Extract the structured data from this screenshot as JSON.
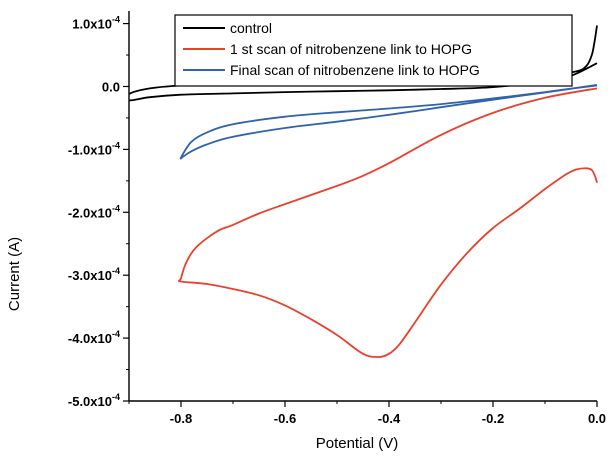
{
  "chart_data": {
    "type": "line",
    "title": "",
    "xlabel": "Potential (V)",
    "ylabel": "Current (A)",
    "xlim": [
      -0.9,
      0.0
    ],
    "ylim": [
      -0.0005,
      0.00012
    ],
    "x_ticks": [
      {
        "value": -0.8,
        "label": "-0.8"
      },
      {
        "value": -0.6,
        "label": "-0.6"
      },
      {
        "value": -0.4,
        "label": "-0.4"
      },
      {
        "value": -0.2,
        "label": "-0.2"
      },
      {
        "value": 0.0,
        "label": "0.0"
      }
    ],
    "y_ticks": [
      {
        "value": 0.0001,
        "mantissa": "1.0x10",
        "exp": "-4"
      },
      {
        "value": 0.0,
        "mantissa": "0.0",
        "exp": ""
      },
      {
        "value": -0.0001,
        "mantissa": "-1.0x10",
        "exp": "-4"
      },
      {
        "value": -0.0002,
        "mantissa": "-2.0x10",
        "exp": "-4"
      },
      {
        "value": -0.0003,
        "mantissa": "-3.0x10",
        "exp": "-4"
      },
      {
        "value": -0.0004,
        "mantissa": "-4.0x10",
        "exp": "-4"
      },
      {
        "value": -0.0005,
        "mantissa": "-5.0x10",
        "exp": "-4"
      }
    ],
    "grid": false,
    "legend_position": "top-right",
    "series": [
      {
        "name": "control",
        "color": "#000000",
        "points": [
          [
            0.0,
            9.7e-05
          ],
          [
            -0.005,
            7e-05
          ],
          [
            -0.01,
            5e-05
          ],
          [
            -0.02,
            3.3e-05
          ],
          [
            -0.04,
            2.4e-05
          ],
          [
            -0.1,
            1.8e-05
          ],
          [
            -0.2,
            1.4e-05
          ],
          [
            -0.3,
            1.1e-05
          ],
          [
            -0.4,
            9e-06
          ],
          [
            -0.5,
            7.5e-06
          ],
          [
            -0.6,
            6e-06
          ],
          [
            -0.7,
            4e-06
          ],
          [
            -0.8,
            1.5e-06
          ],
          [
            -0.86,
            -3e-06
          ],
          [
            -0.9,
            -1.2e-05
          ],
          [
            -0.9,
            -2.2e-05
          ],
          [
            -0.86,
            -1.7e-05
          ],
          [
            -0.8,
            -1.3e-05
          ],
          [
            -0.7,
            -1.1e-05
          ],
          [
            -0.6,
            -9e-06
          ],
          [
            -0.5,
            -7.5e-06
          ],
          [
            -0.4,
            -6e-06
          ],
          [
            -0.3,
            -4e-06
          ],
          [
            -0.2,
            -1e-06
          ],
          [
            -0.1,
            8e-06
          ],
          [
            -0.05,
            1.7e-05
          ],
          [
            0.0,
            3.7e-05
          ]
        ]
      },
      {
        "name": "1 st scan of nitrobenzene link to HOPG",
        "color": "#e8412c",
        "points": [
          [
            0.0,
            -0.000153
          ],
          [
            -0.004,
            -0.000142
          ],
          [
            -0.01,
            -0.000133
          ],
          [
            -0.02,
            -0.00013
          ],
          [
            -0.04,
            -0.000132
          ],
          [
            -0.06,
            -0.00014
          ],
          [
            -0.1,
            -0.000163
          ],
          [
            -0.15,
            -0.000195
          ],
          [
            -0.2,
            -0.000225
          ],
          [
            -0.25,
            -0.000265
          ],
          [
            -0.3,
            -0.000315
          ],
          [
            -0.35,
            -0.000375
          ],
          [
            -0.38,
            -0.00041
          ],
          [
            -0.4,
            -0.000425
          ],
          [
            -0.42,
            -0.00043
          ],
          [
            -0.45,
            -0.000425
          ],
          [
            -0.5,
            -0.000395
          ],
          [
            -0.55,
            -0.00037
          ],
          [
            -0.6,
            -0.000348
          ],
          [
            -0.65,
            -0.000332
          ],
          [
            -0.7,
            -0.000322
          ],
          [
            -0.75,
            -0.000314
          ],
          [
            -0.8,
            -0.00031
          ],
          [
            -0.8,
            -0.000305
          ],
          [
            -0.79,
            -0.00028
          ],
          [
            -0.77,
            -0.000255
          ],
          [
            -0.73,
            -0.00023
          ],
          [
            -0.7,
            -0.00022
          ],
          [
            -0.65,
            -0.000202
          ],
          [
            -0.6,
            -0.000187
          ],
          [
            -0.5,
            -0.000158
          ],
          [
            -0.45,
            -0.000142
          ],
          [
            -0.4,
            -0.000122
          ],
          [
            -0.3,
            -7.7e-05
          ],
          [
            -0.2,
            -4.2e-05
          ],
          [
            -0.1,
            -1.8e-05
          ],
          [
            0.0,
            -3e-06
          ]
        ]
      },
      {
        "name": "Final scan of nitrobenzene link to HOPG",
        "color": "#2f63b0",
        "points": [
          [
            0.0,
            1.5e-06
          ],
          [
            -0.05,
            -3.5e-06
          ],
          [
            -0.1,
            -9e-06
          ],
          [
            -0.2,
            -1.9e-05
          ],
          [
            -0.3,
            -2.8e-05
          ],
          [
            -0.4,
            -3.5e-05
          ],
          [
            -0.5,
            -4.1e-05
          ],
          [
            -0.6,
            -4.8e-05
          ],
          [
            -0.7,
            -6e-05
          ],
          [
            -0.75,
            -7.3e-05
          ],
          [
            -0.78,
            -8.8e-05
          ],
          [
            -0.8,
            -0.000113
          ],
          [
            -0.795,
            -0.000111
          ],
          [
            -0.78,
            -0.000103
          ],
          [
            -0.75,
            -9.2e-05
          ],
          [
            -0.7,
            -8e-05
          ],
          [
            -0.6,
            -6.6e-05
          ],
          [
            -0.5,
            -5.6e-05
          ],
          [
            -0.4,
            -4.5e-05
          ],
          [
            -0.3,
            -3.3e-05
          ],
          [
            -0.2,
            -2.1e-05
          ],
          [
            -0.1,
            -9.5e-06
          ],
          [
            0.0,
            2.5e-06
          ]
        ]
      }
    ]
  }
}
